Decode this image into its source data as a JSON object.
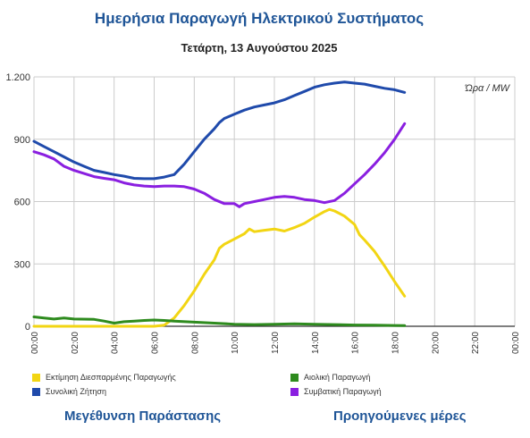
{
  "page": {
    "title": "Ημερήσια Παραγωγή Ηλεκτρικού Συστήματος",
    "date": "Τετάρτη, 13 Αυγούστου 2025"
  },
  "chart_data": {
    "type": "line",
    "unit_label": "Ώρα / MW",
    "ylim": [
      0,
      1200
    ],
    "yticks": [
      0,
      300,
      600,
      900,
      1200
    ],
    "ytick_labels": [
      "0",
      "300",
      "600",
      "900",
      "1.200"
    ],
    "xlim": [
      0,
      24
    ],
    "xticks": [
      0,
      2,
      4,
      6,
      8,
      10,
      12,
      14,
      16,
      18,
      20,
      22,
      24
    ],
    "xtick_labels": [
      "00:00",
      "02:00",
      "04:00",
      "06:00",
      "08:00",
      "10:00",
      "12:00",
      "14:00",
      "16:00",
      "18:00",
      "20:00",
      "22:00",
      "00:00"
    ],
    "grid": true,
    "series": [
      {
        "name": "Εκτίμηση Διεσπαρμένης Παραγωγής",
        "color": "#f2d513",
        "points": [
          [
            0,
            0
          ],
          [
            1,
            0
          ],
          [
            2,
            0
          ],
          [
            3,
            0
          ],
          [
            4,
            0
          ],
          [
            5,
            0
          ],
          [
            6,
            0
          ],
          [
            6.5,
            5
          ],
          [
            7,
            40
          ],
          [
            7.5,
            100
          ],
          [
            8,
            170
          ],
          [
            8.5,
            250
          ],
          [
            9,
            320
          ],
          [
            9.25,
            375
          ],
          [
            9.5,
            395
          ],
          [
            10,
            420
          ],
          [
            10.5,
            445
          ],
          [
            10.75,
            468
          ],
          [
            11,
            455
          ],
          [
            11.5,
            462
          ],
          [
            12,
            468
          ],
          [
            12.5,
            458
          ],
          [
            13,
            475
          ],
          [
            13.5,
            495
          ],
          [
            14,
            525
          ],
          [
            14.5,
            552
          ],
          [
            14.75,
            562
          ],
          [
            15,
            555
          ],
          [
            15.5,
            530
          ],
          [
            16,
            490
          ],
          [
            16.25,
            440
          ],
          [
            16.5,
            415
          ],
          [
            17,
            360
          ],
          [
            17.5,
            290
          ],
          [
            18,
            215
          ],
          [
            18.5,
            145
          ]
        ]
      },
      {
        "name": "Αιολική Παραγωγή",
        "color": "#2e8b1e",
        "points": [
          [
            0,
            45
          ],
          [
            0.5,
            40
          ],
          [
            1,
            35
          ],
          [
            1.5,
            40
          ],
          [
            2,
            35
          ],
          [
            3,
            33
          ],
          [
            3.5,
            25
          ],
          [
            4,
            15
          ],
          [
            4.5,
            22
          ],
          [
            5,
            25
          ],
          [
            5.5,
            28
          ],
          [
            6,
            30
          ],
          [
            6.5,
            28
          ],
          [
            7,
            25
          ],
          [
            8,
            20
          ],
          [
            9,
            15
          ],
          [
            10,
            10
          ],
          [
            11,
            8
          ],
          [
            12,
            10
          ],
          [
            13,
            12
          ],
          [
            14,
            10
          ],
          [
            15,
            8
          ],
          [
            16,
            6
          ],
          [
            17,
            5
          ],
          [
            18,
            4
          ],
          [
            18.5,
            3
          ]
        ]
      },
      {
        "name": "Συνολική Ζήτηση",
        "color": "#1f4aab",
        "points": [
          [
            0,
            890
          ],
          [
            0.5,
            865
          ],
          [
            1,
            840
          ],
          [
            1.5,
            815
          ],
          [
            2,
            790
          ],
          [
            2.5,
            770
          ],
          [
            3,
            750
          ],
          [
            3.5,
            740
          ],
          [
            4,
            730
          ],
          [
            4.5,
            722
          ],
          [
            5,
            712
          ],
          [
            5.5,
            710
          ],
          [
            6,
            710
          ],
          [
            6.5,
            718
          ],
          [
            7,
            730
          ],
          [
            7.5,
            780
          ],
          [
            8,
            840
          ],
          [
            8.5,
            900
          ],
          [
            9,
            950
          ],
          [
            9.25,
            980
          ],
          [
            9.5,
            1000
          ],
          [
            10,
            1020
          ],
          [
            10.5,
            1040
          ],
          [
            11,
            1055
          ],
          [
            11.5,
            1065
          ],
          [
            12,
            1075
          ],
          [
            12.5,
            1090
          ],
          [
            13,
            1110
          ],
          [
            13.5,
            1130
          ],
          [
            14,
            1150
          ],
          [
            14.5,
            1162
          ],
          [
            15,
            1170
          ],
          [
            15.5,
            1175
          ],
          [
            16,
            1170
          ],
          [
            16.5,
            1165
          ],
          [
            17,
            1155
          ],
          [
            17.5,
            1145
          ],
          [
            18,
            1138
          ],
          [
            18.5,
            1125
          ]
        ]
      },
      {
        "name": "Συμβατική Παραγωγή",
        "color": "#8a1fe0",
        "points": [
          [
            0,
            840
          ],
          [
            0.5,
            825
          ],
          [
            1,
            805
          ],
          [
            1.5,
            770
          ],
          [
            2,
            750
          ],
          [
            2.5,
            735
          ],
          [
            3,
            720
          ],
          [
            3.5,
            712
          ],
          [
            4,
            705
          ],
          [
            4.5,
            690
          ],
          [
            5,
            680
          ],
          [
            5.5,
            675
          ],
          [
            6,
            672
          ],
          [
            6.5,
            675
          ],
          [
            7,
            675
          ],
          [
            7.5,
            672
          ],
          [
            8,
            660
          ],
          [
            8.5,
            640
          ],
          [
            9,
            610
          ],
          [
            9.5,
            590
          ],
          [
            10,
            590
          ],
          [
            10.25,
            575
          ],
          [
            10.5,
            590
          ],
          [
            11,
            600
          ],
          [
            11.5,
            610
          ],
          [
            12,
            620
          ],
          [
            12.5,
            625
          ],
          [
            13,
            620
          ],
          [
            13.5,
            610
          ],
          [
            14,
            605
          ],
          [
            14.5,
            595
          ],
          [
            15,
            605
          ],
          [
            15.5,
            640
          ],
          [
            16,
            685
          ],
          [
            16.5,
            730
          ],
          [
            17,
            780
          ],
          [
            17.5,
            835
          ],
          [
            18,
            900
          ],
          [
            18.5,
            975
          ]
        ]
      }
    ]
  },
  "links": {
    "enlarge": "Μεγέθυνση Παράστασης",
    "previous_days": "Προηγούμενες μέρες"
  }
}
